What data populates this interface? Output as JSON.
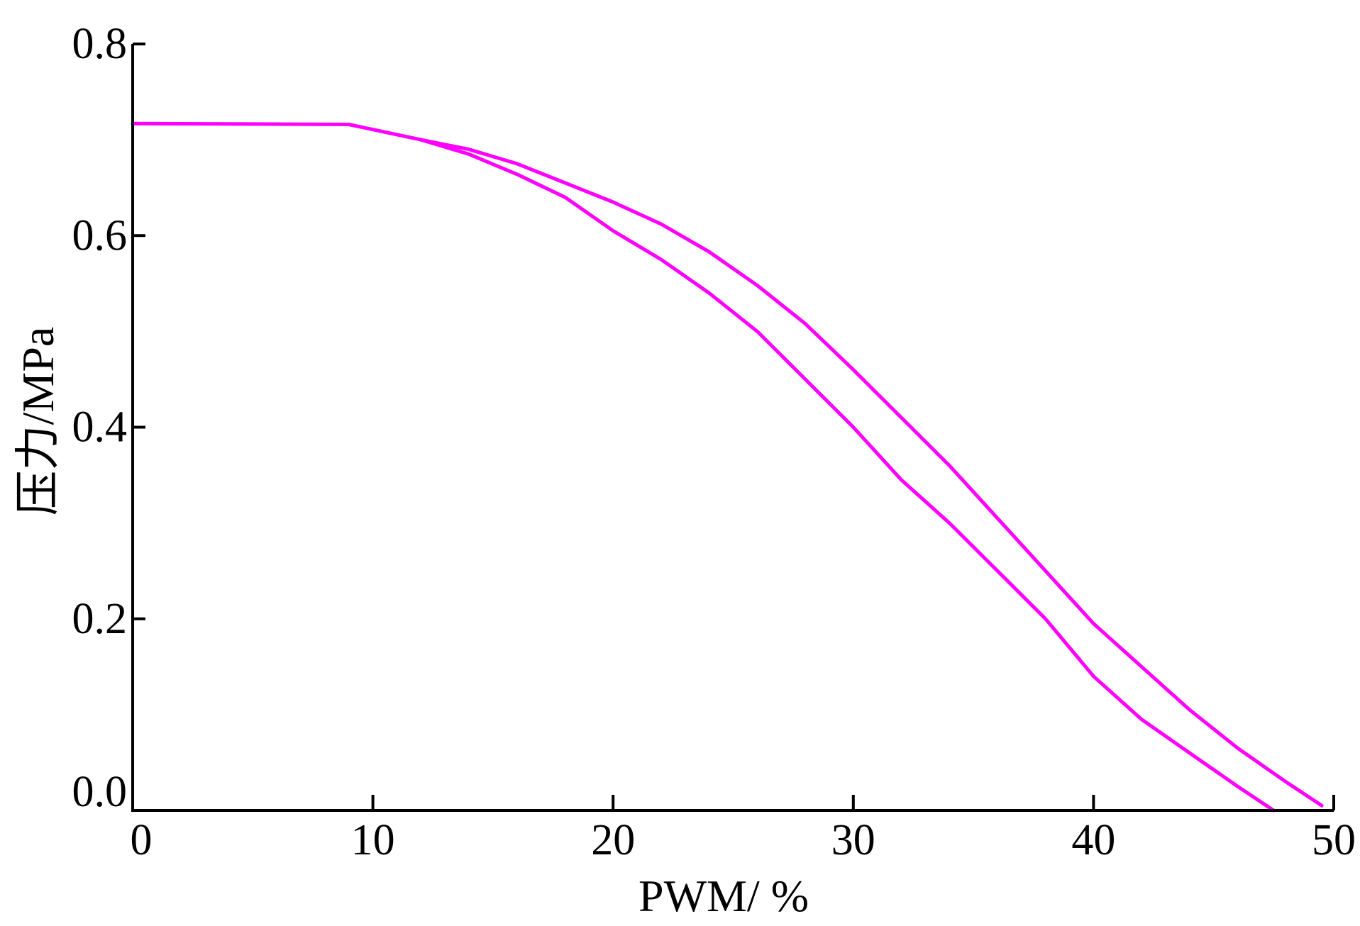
{
  "chart_data": {
    "type": "line",
    "title": "",
    "xlabel": "PWM/ %",
    "ylabel": "压力/MPa",
    "xlim": [
      0,
      50
    ],
    "ylim": [
      0,
      0.8
    ],
    "x_ticks": [
      0,
      10,
      20,
      30,
      40,
      50
    ],
    "x_tick_labels": [
      "0",
      "10",
      "20",
      "30",
      "40",
      "50"
    ],
    "y_ticks": [
      0,
      0.2,
      0.4,
      0.6,
      0.8
    ],
    "y_tick_labels": [
      "0.0",
      "0.2",
      "0.4",
      "0.6",
      "0.8"
    ],
    "grid": false,
    "legend": "none",
    "line_color": "#ff00ff",
    "series": [
      {
        "x": [
          0,
          9,
          12,
          14,
          16,
          18,
          20,
          22,
          24,
          26,
          28,
          30,
          32,
          34,
          36,
          38,
          40,
          42,
          44,
          46,
          47.5
        ],
        "y": [
          0.717,
          0.716,
          0.7,
          0.685,
          0.664,
          0.64,
          0.605,
          0.575,
          0.54,
          0.5,
          0.45,
          0.4,
          0.345,
          0.3,
          0.25,
          0.2,
          0.14,
          0.095,
          0.06,
          0.025,
          0.0
        ]
      },
      {
        "x": [
          12,
          14,
          16,
          18,
          20,
          22,
          24,
          26,
          28,
          30,
          32,
          34,
          36,
          38,
          40,
          42,
          44,
          46,
          48,
          49.5
        ],
        "y": [
          0.7,
          0.69,
          0.675,
          0.655,
          0.635,
          0.612,
          0.583,
          0.548,
          0.508,
          0.46,
          0.41,
          0.36,
          0.305,
          0.25,
          0.195,
          0.15,
          0.105,
          0.065,
          0.03,
          0.005
        ]
      }
    ]
  }
}
